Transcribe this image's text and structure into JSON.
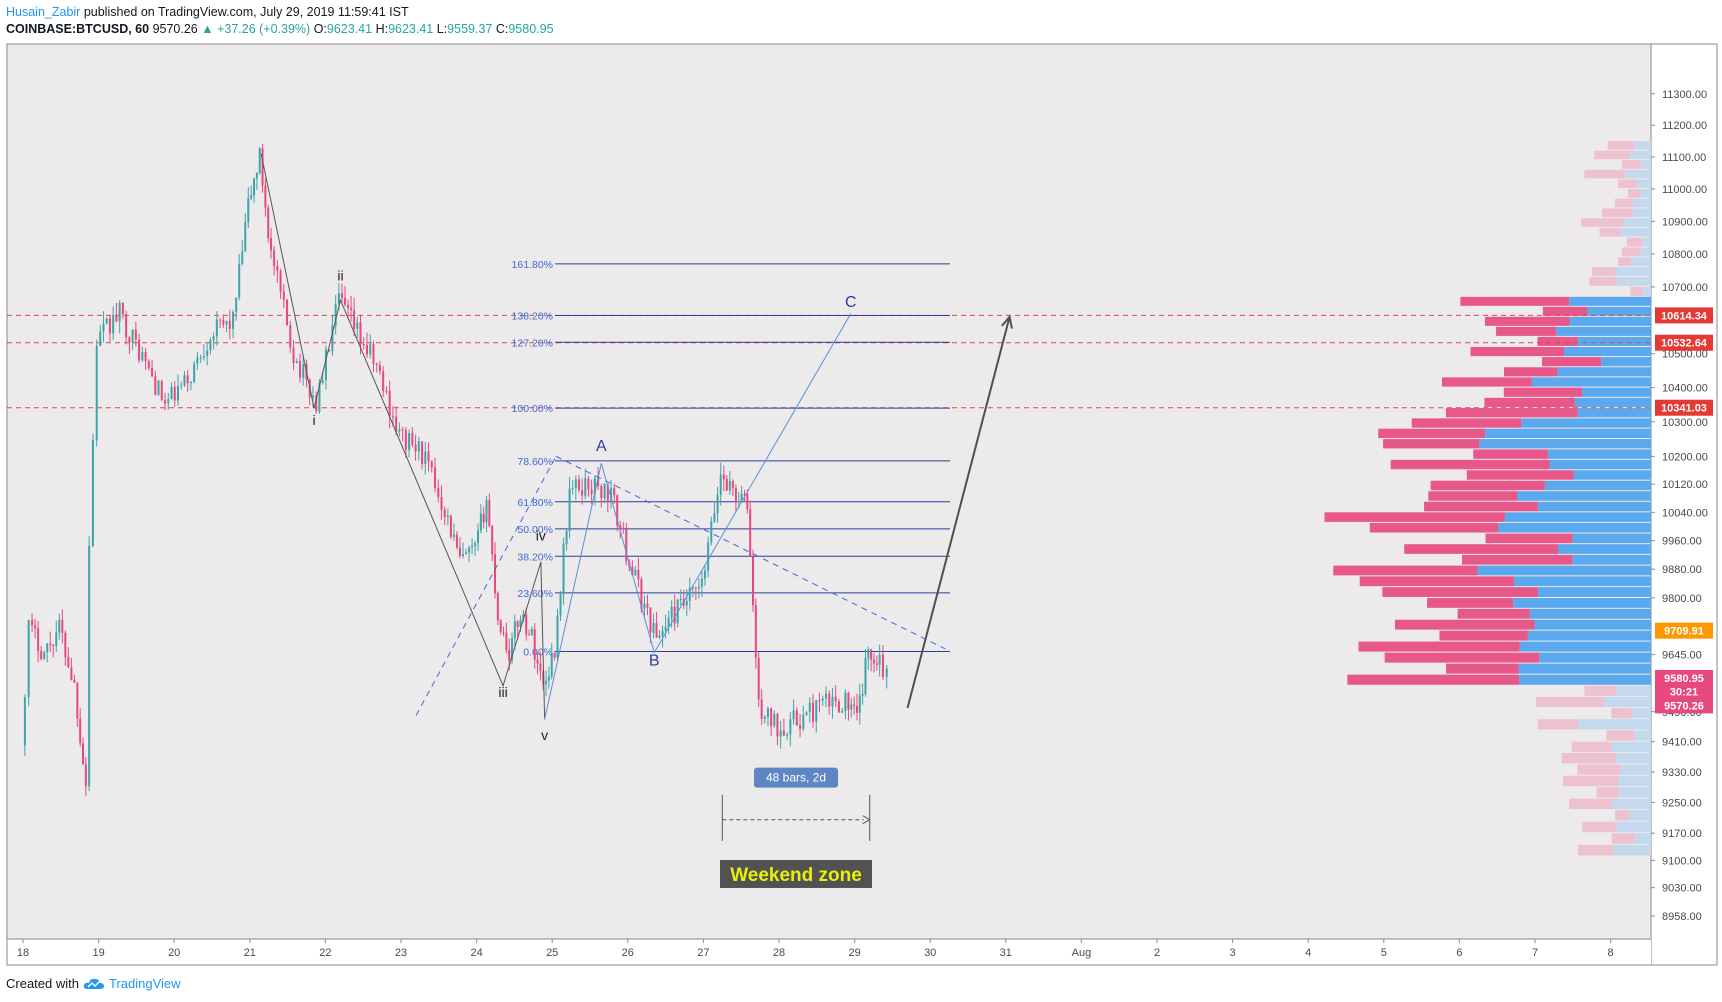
{
  "header": {
    "author": "Husain_Zabir",
    "published": "published on TradingView.com, July 29, 2019 11:59:41 IST",
    "symbol": "COINBASE:BTCUSD, 60",
    "last": "9570.26",
    "change": "▲ +37.26 (+0.39%)",
    "o_label": "O:",
    "o": "9623.41",
    "h_label": "H:",
    "h": "9623.41",
    "l_label": "L:",
    "l": "9559.37",
    "c_label": "C:",
    "c": "9580.95"
  },
  "footer": {
    "created_with": "Created with",
    "brand": "TradingView"
  },
  "colors": {
    "background": "#eceaea",
    "up": "#3fa3ac",
    "down": "#e8497d",
    "fib": "#2b3f9a",
    "fib_text": "#3c6ad8",
    "dashed_red": "#e04545",
    "vp_up": "#5aa8ee",
    "vp_down": "#e8578a",
    "vp_up_light": "#c4d9ee",
    "vp_down_light": "#eec1d1"
  },
  "chart_data": {
    "type": "candlestick",
    "title": "",
    "y_scale": "log",
    "ylim": [
      8900,
      11460
    ],
    "x_tick_labels": [
      "18",
      "19",
      "20",
      "21",
      "22",
      "23",
      "24",
      "25",
      "26",
      "27",
      "28",
      "29",
      "30",
      "31",
      "Aug",
      "2",
      "3",
      "4",
      "5",
      "6",
      "7",
      "8"
    ],
    "y_tick_labels": [
      "11300.00",
      "11200.00",
      "11100.00",
      "11000.00",
      "10900.00",
      "10800.00",
      "10700.00",
      "10500.00",
      "10400.00",
      "10300.00",
      "10200.00",
      "10120.00",
      "10040.00",
      "9960.00",
      "9880.00",
      "9800.00",
      "9645.00",
      "9490.00",
      "9410.00",
      "9330.00",
      "9250.00",
      "9170.00",
      "9100.00",
      "9030.00",
      "8958.00"
    ],
    "price_badges": [
      {
        "label": "10614.34",
        "value": 10614.34,
        "color": "#e53935"
      },
      {
        "label": "10532.64",
        "value": 10532.64,
        "color": "#e53935"
      },
      {
        "label": "10341.03",
        "value": 10341.03,
        "color": "#e53935"
      },
      {
        "label": "9709.91",
        "value": 9709.91,
        "color": "#ff9800"
      },
      {
        "label": "9580.95",
        "value": 9580.95,
        "color": "#e8497d"
      },
      {
        "label": "30:21",
        "value": 9545,
        "color": "#e8497d"
      },
      {
        "label": "9570.26",
        "value": 9507,
        "color": "#e8497d"
      }
    ],
    "horizontal_levels": [
      10614.34,
      10532.64,
      10341.03
    ],
    "fib_levels": [
      {
        "label": "161.80%",
        "value": 10770
      },
      {
        "label": "138.20%",
        "value": 10614
      },
      {
        "label": "127.20%",
        "value": 10534
      },
      {
        "label": "100.00%",
        "value": 10340
      },
      {
        "label": "78.60%",
        "value": 10187
      },
      {
        "label": "61.80%",
        "value": 10070
      },
      {
        "label": "50.00%",
        "value": 9993
      },
      {
        "label": "38.20%",
        "value": 9916
      },
      {
        "label": "23.60%",
        "value": 9814
      },
      {
        "label": "0.00%",
        "value": 9653
      }
    ],
    "wave_labels": [
      "ii",
      "i",
      "iii",
      "iv",
      "v",
      "A",
      "B",
      "C"
    ],
    "annotations": {
      "bars": "48 bars, 2d",
      "zone": "Weekend zone"
    },
    "approx_path": [
      [
        18.0,
        9400
      ],
      [
        18.1,
        9720
      ],
      [
        18.3,
        9650
      ],
      [
        18.5,
        9720
      ],
      [
        18.7,
        9560
      ],
      [
        18.85,
        9300
      ],
      [
        18.9,
        9950
      ],
      [
        19.0,
        10540
      ],
      [
        19.3,
        10620
      ],
      [
        19.6,
        10490
      ],
      [
        19.9,
        10350
      ],
      [
        20.2,
        10420
      ],
      [
        20.5,
        10560
      ],
      [
        20.8,
        10600
      ],
      [
        21.0,
        10950
      ],
      [
        21.15,
        11100
      ],
      [
        21.3,
        10800
      ],
      [
        21.6,
        10500
      ],
      [
        21.9,
        10350
      ],
      [
        22.2,
        10660
      ],
      [
        22.4,
        10580
      ],
      [
        22.7,
        10460
      ],
      [
        23.0,
        10260
      ],
      [
        23.3,
        10210
      ],
      [
        23.6,
        10050
      ],
      [
        23.8,
        9900
      ],
      [
        24.0,
        9930
      ],
      [
        24.15,
        10080
      ],
      [
        24.3,
        9750
      ],
      [
        24.45,
        9650
      ],
      [
        24.6,
        9760
      ],
      [
        24.75,
        9690
      ],
      [
        24.9,
        9560
      ],
      [
        25.05,
        9660
      ],
      [
        25.25,
        10100
      ],
      [
        25.5,
        10120
      ],
      [
        25.8,
        10090
      ],
      [
        26.0,
        9930
      ],
      [
        26.2,
        9800
      ],
      [
        26.4,
        9690
      ],
      [
        26.6,
        9750
      ],
      [
        27.0,
        9830
      ],
      [
        27.25,
        10150
      ],
      [
        27.45,
        10090
      ],
      [
        27.6,
        10060
      ],
      [
        27.75,
        9500
      ],
      [
        28.0,
        9450
      ],
      [
        28.3,
        9470
      ],
      [
        28.6,
        9510
      ],
      [
        28.9,
        9520
      ],
      [
        29.05,
        9470
      ],
      [
        29.2,
        9650
      ],
      [
        29.35,
        9640
      ],
      [
        29.45,
        9580
      ]
    ]
  }
}
